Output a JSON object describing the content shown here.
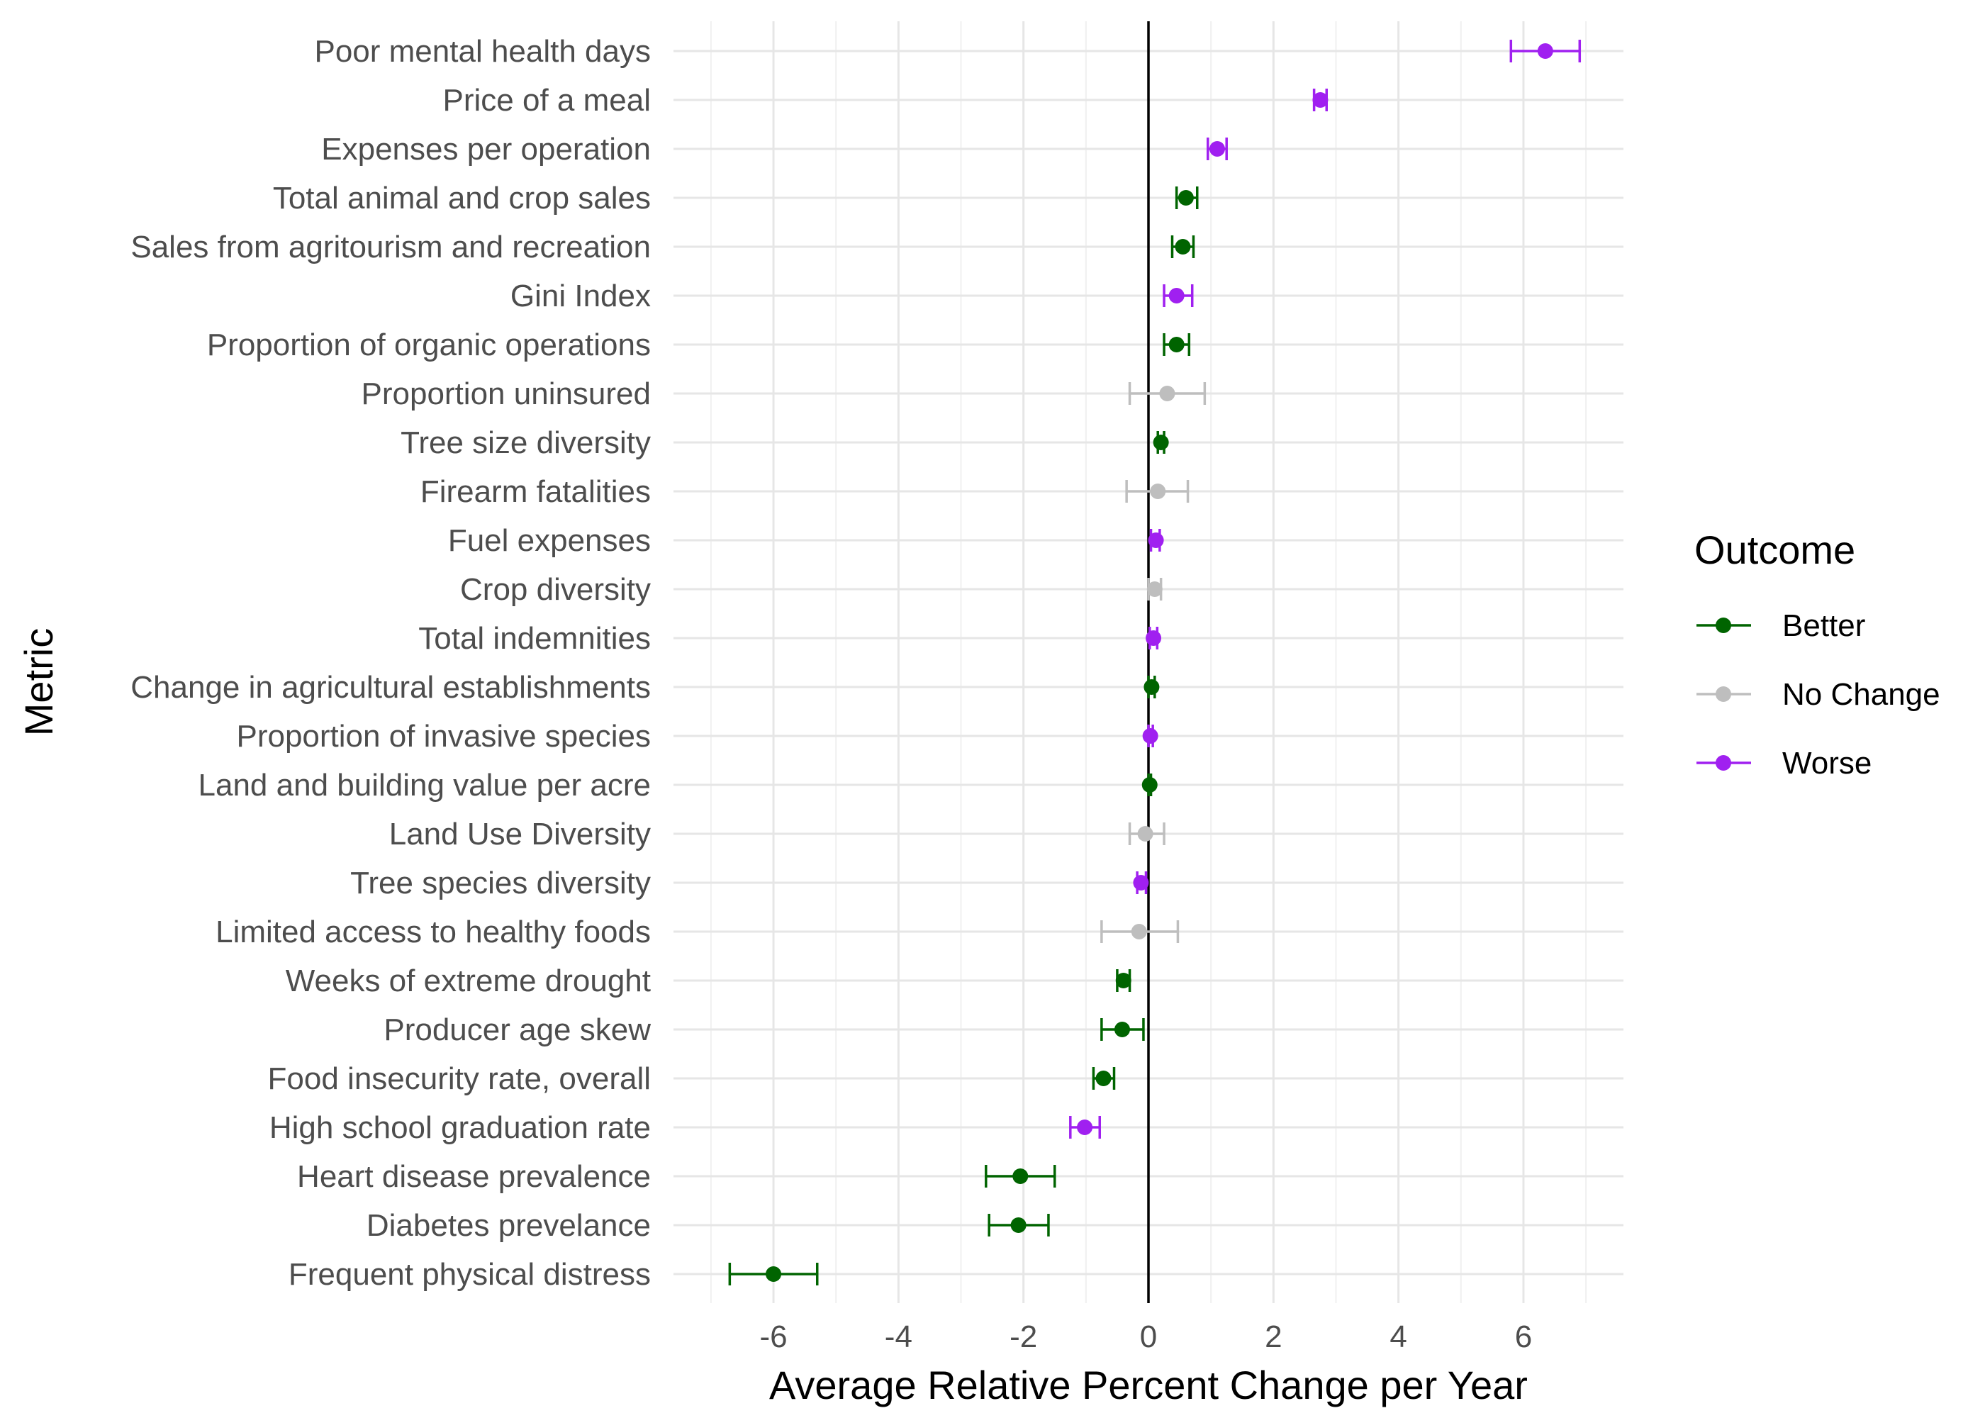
{
  "chart_data": {
    "type": "scatter",
    "subtype": "dot-and-whisker",
    "orientation": "horizontal",
    "xlabel": "Average Relative Percent Change per Year",
    "ylabel": "Metric",
    "xlim": [
      -7.6,
      7.6
    ],
    "x_ticks": [
      -6,
      -4,
      -2,
      0,
      2,
      4,
      6
    ],
    "x_tick_labels": [
      "-6",
      "-4",
      "-2",
      "0",
      "2",
      "4",
      "6"
    ],
    "vertical_reference_line": 0,
    "grid": true,
    "legend": {
      "title": "Outcome",
      "placement": "right",
      "entries": [
        {
          "label": "Better",
          "color": "#006400"
        },
        {
          "label": "No Change",
          "color": "#bebebe"
        },
        {
          "label": "Worse",
          "color": "#a020f0"
        }
      ]
    },
    "points": [
      {
        "metric": "Poor mental health days",
        "estimate": 6.35,
        "low": 5.8,
        "high": 6.9,
        "outcome": "Worse"
      },
      {
        "metric": "Price of a meal",
        "estimate": 2.75,
        "low": 2.65,
        "high": 2.85,
        "outcome": "Worse"
      },
      {
        "metric": "Expenses per operation",
        "estimate": 1.1,
        "low": 0.95,
        "high": 1.25,
        "outcome": "Worse"
      },
      {
        "metric": "Total animal and crop sales",
        "estimate": 0.6,
        "low": 0.45,
        "high": 0.78,
        "outcome": "Better"
      },
      {
        "metric": "Sales from agritourism and recreation",
        "estimate": 0.55,
        "low": 0.38,
        "high": 0.72,
        "outcome": "Better"
      },
      {
        "metric": "Gini Index",
        "estimate": 0.45,
        "low": 0.25,
        "high": 0.7,
        "outcome": "Worse"
      },
      {
        "metric": "Proportion of organic operations",
        "estimate": 0.45,
        "low": 0.25,
        "high": 0.65,
        "outcome": "Better"
      },
      {
        "metric": "Proportion uninsured",
        "estimate": 0.3,
        "low": -0.3,
        "high": 0.9,
        "outcome": "No Change"
      },
      {
        "metric": "Tree size diversity",
        "estimate": 0.2,
        "low": 0.15,
        "high": 0.25,
        "outcome": "Better"
      },
      {
        "metric": "Firearm fatalities",
        "estimate": 0.15,
        "low": -0.35,
        "high": 0.63,
        "outcome": "No Change"
      },
      {
        "metric": "Fuel expenses",
        "estimate": 0.12,
        "low": 0.04,
        "high": 0.18,
        "outcome": "Worse"
      },
      {
        "metric": "Crop diversity",
        "estimate": 0.1,
        "low": 0.0,
        "high": 0.2,
        "outcome": "No Change"
      },
      {
        "metric": "Total indemnities",
        "estimate": 0.08,
        "low": 0.02,
        "high": 0.14,
        "outcome": "Worse"
      },
      {
        "metric": "Change in agricultural establishments",
        "estimate": 0.05,
        "low": 0.0,
        "high": 0.1,
        "outcome": "Better"
      },
      {
        "metric": "Proportion of invasive species",
        "estimate": 0.03,
        "low": 0.0,
        "high": 0.07,
        "outcome": "Worse"
      },
      {
        "metric": "Land and building value per acre",
        "estimate": 0.02,
        "low": 0.0,
        "high": 0.04,
        "outcome": "Better"
      },
      {
        "metric": "Land Use Diversity",
        "estimate": -0.05,
        "low": -0.3,
        "high": 0.25,
        "outcome": "No Change"
      },
      {
        "metric": "Tree species diversity",
        "estimate": -0.12,
        "low": -0.18,
        "high": -0.04,
        "outcome": "Worse"
      },
      {
        "metric": "Limited access to healthy foods",
        "estimate": -0.15,
        "low": -0.75,
        "high": 0.47,
        "outcome": "No Change"
      },
      {
        "metric": "Weeks of extreme drought",
        "estimate": -0.4,
        "low": -0.5,
        "high": -0.3,
        "outcome": "Better"
      },
      {
        "metric": "Producer age skew",
        "estimate": -0.42,
        "low": -0.75,
        "high": -0.08,
        "outcome": "Better"
      },
      {
        "metric": "Food insecurity rate, overall",
        "estimate": -0.72,
        "low": -0.88,
        "high": -0.55,
        "outcome": "Better"
      },
      {
        "metric": "High school graduation rate",
        "estimate": -1.02,
        "low": -1.25,
        "high": -0.78,
        "outcome": "Worse"
      },
      {
        "metric": "Heart disease prevalence",
        "estimate": -2.05,
        "low": -2.6,
        "high": -1.5,
        "outcome": "Better"
      },
      {
        "metric": "Diabetes prevelance",
        "estimate": -2.08,
        "low": -2.55,
        "high": -1.6,
        "outcome": "Better"
      },
      {
        "metric": "Frequent physical distress",
        "estimate": -6.0,
        "low": -6.7,
        "high": -5.3,
        "outcome": "Better"
      }
    ]
  }
}
